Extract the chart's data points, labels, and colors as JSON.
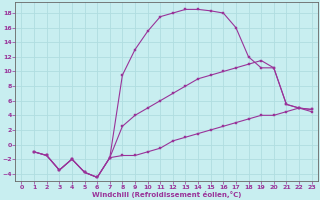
{
  "xlabel": "Windchill (Refroidissement éolien,°C)",
  "bg_color": "#c8eef0",
  "grid_color": "#b0dde0",
  "line_color": "#993399",
  "xlim": [
    -0.5,
    23.5
  ],
  "ylim": [
    -5,
    19.5
  ],
  "xticks": [
    0,
    1,
    2,
    3,
    4,
    5,
    6,
    7,
    8,
    9,
    10,
    11,
    12,
    13,
    14,
    15,
    16,
    17,
    18,
    19,
    20,
    21,
    22,
    23
  ],
  "yticks": [
    -4,
    -2,
    0,
    2,
    4,
    6,
    8,
    10,
    12,
    14,
    16,
    18
  ],
  "curve1_x": [
    1,
    2,
    3,
    4,
    5,
    6,
    7,
    8,
    9,
    10,
    11,
    12,
    13,
    14,
    15,
    16,
    17,
    18,
    19,
    20,
    21,
    22,
    23
  ],
  "curve1_y": [
    -1,
    -1.5,
    -3.5,
    -2.0,
    -3.8,
    -4.5,
    -1.8,
    9.5,
    13.0,
    15.5,
    17.5,
    18.0,
    18.5,
    18.5,
    18.3,
    18.0,
    16.0,
    12.0,
    10.5,
    10.5,
    5.5,
    5.0,
    4.5
  ],
  "curve2_x": [
    1,
    2,
    3,
    4,
    5,
    6,
    7,
    8,
    9,
    10,
    11,
    12,
    13,
    14,
    15,
    16,
    17,
    18,
    19,
    20,
    21,
    22,
    23
  ],
  "curve2_y": [
    -1,
    -1.5,
    -3.5,
    -2.0,
    -3.8,
    -4.5,
    -1.8,
    -1.5,
    -1.5,
    -1.0,
    -0.5,
    0.5,
    1.0,
    1.5,
    2.0,
    2.5,
    3.0,
    3.5,
    4.0,
    4.0,
    4.5,
    5.0,
    4.8
  ],
  "curve3_x": [
    1,
    2,
    3,
    4,
    5,
    6,
    7,
    8,
    9,
    10,
    11,
    12,
    13,
    14,
    15,
    16,
    17,
    18,
    19,
    20,
    21,
    22,
    23
  ],
  "curve3_y": [
    -1,
    -1.5,
    -3.5,
    -2.0,
    -3.8,
    -4.5,
    -1.8,
    2.5,
    4.0,
    5.0,
    6.0,
    7.0,
    8.0,
    9.0,
    9.5,
    10.0,
    10.5,
    11.0,
    11.5,
    10.5,
    5.5,
    5.0,
    4.8
  ]
}
